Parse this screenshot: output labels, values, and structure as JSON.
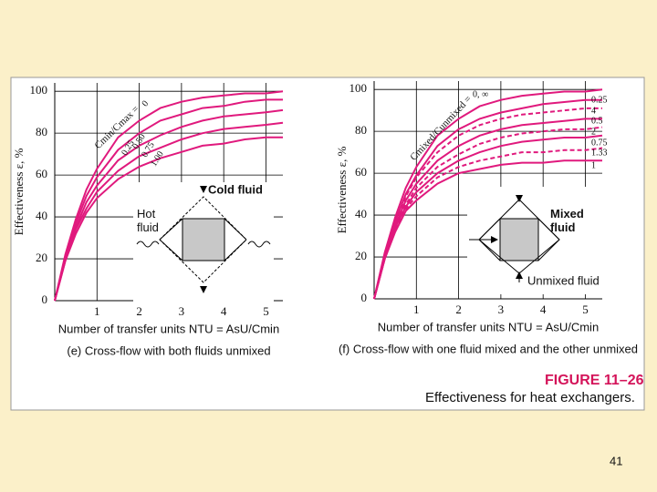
{
  "chart_data": [
    {
      "type": "line",
      "x_label": "Number of transfer units NTU = AsU/Cmin",
      "y_label": "Effectiveness ε, %",
      "caption": "(e) Cross-flow with both fluids unmixed",
      "curve_title": "Cmin/Cmax =",
      "x": [
        0,
        0.25,
        0.5,
        0.75,
        1,
        1.5,
        2,
        2.5,
        3,
        3.5,
        4,
        4.5,
        5,
        5.4
      ],
      "series": [
        {
          "name": "0",
          "color": "#e0197d",
          "style": "solid",
          "values": [
            0,
            22,
            39,
            53,
            63,
            78,
            86,
            92,
            95,
            97,
            98,
            99,
            99,
            100
          ]
        },
        {
          "name": "0.25",
          "color": "#e0197d",
          "style": "solid",
          "values": [
            0,
            21,
            37,
            50,
            59,
            72,
            80,
            86,
            89,
            92,
            93,
            95,
            96,
            96
          ]
        },
        {
          "name": "0.50",
          "color": "#e0197d",
          "style": "solid",
          "values": [
            0,
            20,
            35,
            47,
            55,
            67,
            74,
            79,
            83,
            86,
            88,
            89,
            90,
            91
          ]
        },
        {
          "name": "0.75",
          "color": "#e0197d",
          "style": "solid",
          "values": [
            0,
            19,
            34,
            44,
            52,
            62,
            69,
            73,
            77,
            80,
            82,
            83,
            84,
            85
          ]
        },
        {
          "name": "1.00",
          "color": "#e0197d",
          "style": "solid",
          "values": [
            0,
            19,
            32,
            42,
            49,
            58,
            64,
            68,
            71,
            74,
            75,
            77,
            78,
            78
          ]
        }
      ],
      "xlim": [
        0,
        5.4
      ],
      "xticks": [
        1,
        2,
        3,
        4,
        5
      ],
      "ylim": [
        0,
        104
      ],
      "yticks": [
        0,
        20,
        40,
        60,
        80,
        100
      ],
      "grid": true,
      "annotations": [
        "Cold fluid",
        "Hot fluid"
      ]
    },
    {
      "type": "line",
      "x_label": "Number of transfer units NTU = AsU/Cmin",
      "y_label": "Effectiveness ε, %",
      "caption": "(f) Cross-flow with one fluid mixed and the other unmixed",
      "curve_title": "Cmixed/Cunmixed =",
      "x": [
        0,
        0.25,
        0.5,
        0.75,
        1,
        1.5,
        2,
        2.5,
        3,
        3.5,
        4,
        4.5,
        5,
        5.4
      ],
      "series": [
        {
          "name": "0, ∞",
          "color": "#e0197d",
          "style": "solid",
          "values": [
            0,
            22,
            39,
            53,
            63,
            78,
            86,
            92,
            95,
            97,
            98,
            99,
            99,
            100
          ]
        },
        {
          "name": "0.25",
          "color": "#e0197d",
          "style": "solid",
          "values": [
            0,
            21,
            37,
            50,
            59,
            73,
            81,
            86,
            89,
            91,
            93,
            94,
            95,
            95
          ]
        },
        {
          "name": "4",
          "color": "#e0197d",
          "style": "dashed",
          "values": [
            0,
            21,
            37,
            49,
            58,
            70,
            78,
            83,
            86,
            88,
            89,
            90,
            91,
            91
          ]
        },
        {
          "name": "0.5",
          "color": "#e0197d",
          "style": "solid",
          "values": [
            0,
            20,
            35,
            47,
            55,
            66,
            73,
            78,
            81,
            83,
            84,
            85,
            86,
            86
          ]
        },
        {
          "name": "2",
          "color": "#e0197d",
          "style": "dashed",
          "values": [
            0,
            20,
            35,
            45,
            53,
            63,
            69,
            74,
            77,
            79,
            80,
            81,
            81,
            82
          ]
        },
        {
          "name": "0.75",
          "color": "#e0197d",
          "style": "solid",
          "values": [
            0,
            19,
            34,
            44,
            51,
            60,
            66,
            70,
            73,
            75,
            76,
            77,
            77,
            78
          ]
        },
        {
          "name": "1.33",
          "color": "#e0197d",
          "style": "dashed",
          "values": [
            0,
            19,
            33,
            43,
            49,
            58,
            63,
            66,
            68,
            70,
            70,
            71,
            71,
            72
          ]
        },
        {
          "name": "1",
          "color": "#e0197d",
          "style": "solid",
          "values": [
            0,
            19,
            32,
            42,
            47,
            55,
            60,
            62,
            64,
            65,
            65,
            66,
            66,
            66
          ]
        }
      ],
      "xlim": [
        0,
        5.4
      ],
      "xticks": [
        1,
        2,
        3,
        4,
        5
      ],
      "ylim": [
        0,
        104
      ],
      "yticks": [
        0,
        20,
        40,
        60,
        80,
        100
      ],
      "grid": true,
      "annotations": [
        "Mixed fluid",
        "Unmixed fluid"
      ]
    }
  ],
  "figure": {
    "label": "FIGURE 11–26",
    "caption": "Effectiveness for heat exchangers."
  },
  "page_number": "41"
}
